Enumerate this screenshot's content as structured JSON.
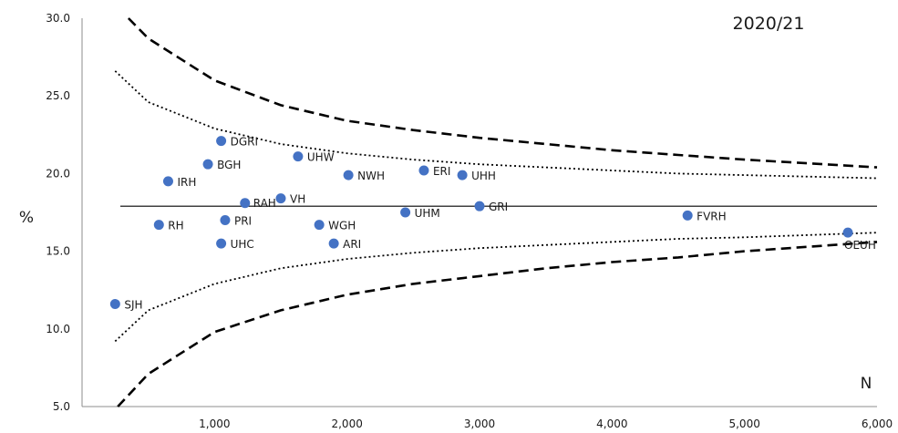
{
  "chart_data": {
    "type": "scatter",
    "chart_style": "funnel plot",
    "title": "2020/21",
    "xlabel": "N",
    "ylabel": "%",
    "xlim": [
      0,
      6000
    ],
    "ylim": [
      5,
      30
    ],
    "x_ticks": [
      "1,000",
      "2,000",
      "3,000",
      "4,000",
      "5,000",
      "6,000"
    ],
    "y_ticks": [
      "5.0",
      "10.0",
      "15.0",
      "20.0",
      "25.0",
      "30.0"
    ],
    "mean": 17.9,
    "points": [
      {
        "label": "SJH",
        "x": 250,
        "y": 11.6
      },
      {
        "label": "RH",
        "x": 580,
        "y": 16.7
      },
      {
        "label": "IRH",
        "x": 650,
        "y": 19.5
      },
      {
        "label": "BGH",
        "x": 950,
        "y": 20.6
      },
      {
        "label": "DGRI",
        "x": 1050,
        "y": 22.1
      },
      {
        "label": "UHC",
        "x": 1050,
        "y": 15.5
      },
      {
        "label": "PRI",
        "x": 1080,
        "y": 17.0
      },
      {
        "label": "RAH",
        "x": 1230,
        "y": 18.1
      },
      {
        "label": "VH",
        "x": 1500,
        "y": 18.4
      },
      {
        "label": "UHW",
        "x": 1630,
        "y": 21.1
      },
      {
        "label": "WGH",
        "x": 1790,
        "y": 16.7
      },
      {
        "label": "ARI",
        "x": 1900,
        "y": 15.5
      },
      {
        "label": "NWH",
        "x": 2010,
        "y": 19.9
      },
      {
        "label": "UHM",
        "x": 2440,
        "y": 17.5
      },
      {
        "label": "ERI",
        "x": 2580,
        "y": 20.2
      },
      {
        "label": "UHH",
        "x": 2870,
        "y": 19.9
      },
      {
        "label": "GRI",
        "x": 3000,
        "y": 17.9
      },
      {
        "label": "FVRH",
        "x": 4570,
        "y": 17.3
      },
      {
        "label": "OEUH",
        "x": 5780,
        "y": 16.2
      }
    ],
    "control_limits": {
      "inner_style": "dotted",
      "outer_style": "dashed",
      "inner_upper": [
        [
          250,
          26.6
        ],
        [
          500,
          24.6
        ],
        [
          1000,
          22.9
        ],
        [
          1500,
          21.9
        ],
        [
          2000,
          21.3
        ],
        [
          2500,
          20.9
        ],
        [
          3000,
          20.6
        ],
        [
          3500,
          20.4
        ],
        [
          4000,
          20.2
        ],
        [
          4500,
          20.0
        ],
        [
          5000,
          19.9
        ],
        [
          6000,
          19.7
        ]
      ],
      "inner_lower": [
        [
          250,
          9.2
        ],
        [
          500,
          11.2
        ],
        [
          1000,
          12.9
        ],
        [
          1500,
          13.9
        ],
        [
          2000,
          14.5
        ],
        [
          2500,
          14.9
        ],
        [
          3000,
          15.2
        ],
        [
          3500,
          15.4
        ],
        [
          4000,
          15.6
        ],
        [
          4500,
          15.8
        ],
        [
          5000,
          15.9
        ],
        [
          6000,
          16.2
        ]
      ],
      "outer_upper": [
        [
          350,
          30.0
        ],
        [
          500,
          28.7
        ],
        [
          1000,
          26.0
        ],
        [
          1500,
          24.4
        ],
        [
          2000,
          23.4
        ],
        [
          2500,
          22.8
        ],
        [
          3000,
          22.3
        ],
        [
          3500,
          21.9
        ],
        [
          4000,
          21.5
        ],
        [
          4500,
          21.2
        ],
        [
          5000,
          20.9
        ],
        [
          6000,
          20.4
        ]
      ],
      "outer_lower": [
        [
          270,
          5.0
        ],
        [
          500,
          7.1
        ],
        [
          1000,
          9.8
        ],
        [
          1500,
          11.2
        ],
        [
          2000,
          12.2
        ],
        [
          2500,
          12.9
        ],
        [
          3000,
          13.4
        ],
        [
          3500,
          13.9
        ],
        [
          4000,
          14.3
        ],
        [
          4500,
          14.6
        ],
        [
          5000,
          15.0
        ],
        [
          6000,
          15.6
        ]
      ]
    },
    "colors": {
      "points": "#4472c4",
      "limits": "#000000",
      "axis": "#8c8c8c"
    },
    "grid": false,
    "legend": "none"
  }
}
